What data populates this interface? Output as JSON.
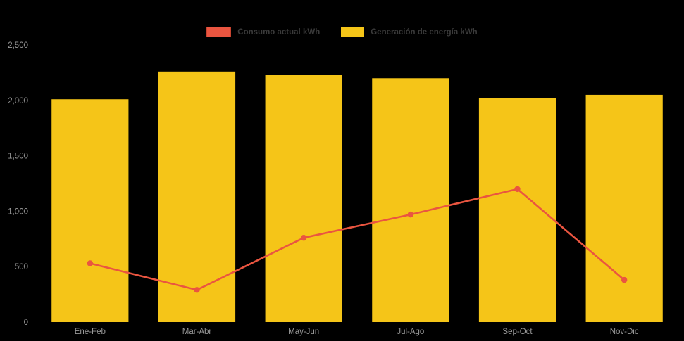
{
  "chart_data": {
    "type": "bar+line",
    "title": "",
    "categories": [
      "Ene-Feb",
      "Mar-Abr",
      "May-Jun",
      "Jul-Ago",
      "Sep-Oct",
      "Nov-Dic"
    ],
    "series": [
      {
        "name": "Consumo actual kWh",
        "type": "line",
        "color": "#ea5540",
        "values": [
          530,
          290,
          760,
          970,
          1200,
          380
        ]
      },
      {
        "name": "Generación de energía kWh",
        "type": "bar",
        "color": "#f5c518",
        "values": [
          2010,
          2260,
          2230,
          2200,
          2020,
          2050
        ]
      }
    ],
    "xlabel": "",
    "ylabel": "",
    "ylim": [
      0,
      2500
    ],
    "yticks": [
      0,
      500,
      1000,
      1500,
      2000,
      2500
    ],
    "ytick_labels": [
      "0",
      "500",
      "1,000",
      "1,500",
      "2,000",
      "2,500"
    ],
    "grid": false,
    "legend_position": "top-center"
  },
  "legend": {
    "items": [
      {
        "label": "Consumo actual kWh",
        "color": "#ea5540"
      },
      {
        "label": "Generación de energía kWh",
        "color": "#f5c518"
      }
    ]
  },
  "colors": {
    "background": "#000000",
    "bar": "#f5c518",
    "line": "#ea5540",
    "axis_label": "#999999",
    "legend_text": "#3a3a3a"
  }
}
